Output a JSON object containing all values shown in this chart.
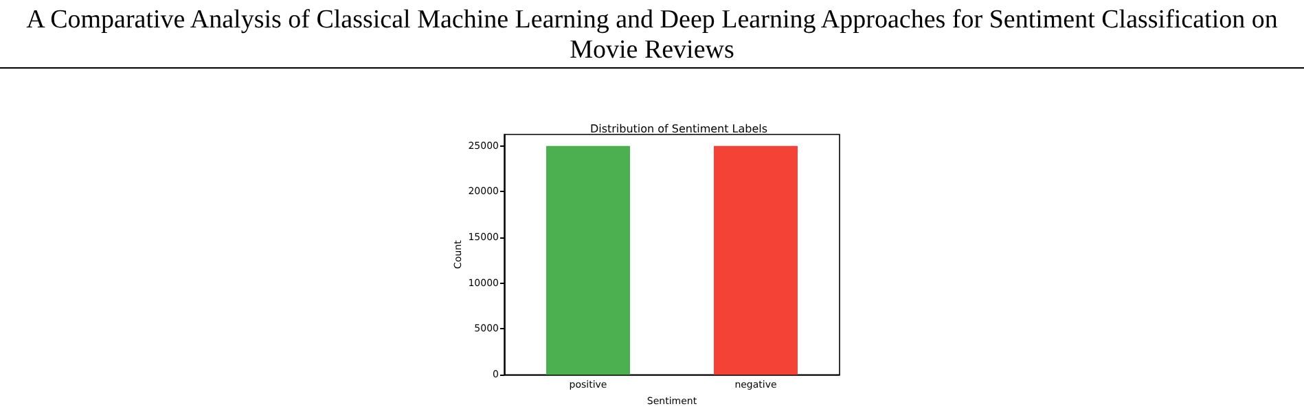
{
  "chart_data": {
    "type": "bar",
    "title": "Distribution of Sentiment Labels",
    "xlabel": "Sentiment",
    "ylabel": "Count",
    "categories": [
      "positive",
      "negative"
    ],
    "values": [
      25000,
      25000
    ],
    "colors": [
      "#4caf50",
      "#f44336"
    ],
    "ylim": [
      0,
      26250
    ],
    "yticks": [
      0,
      5000,
      10000,
      15000,
      20000,
      25000
    ],
    "grid": false,
    "annotations": [
      "A Comparative Analysis of Classical Machine Learning and Deep Learning Approaches for Sentiment Classification on Movie Reviews"
    ]
  }
}
